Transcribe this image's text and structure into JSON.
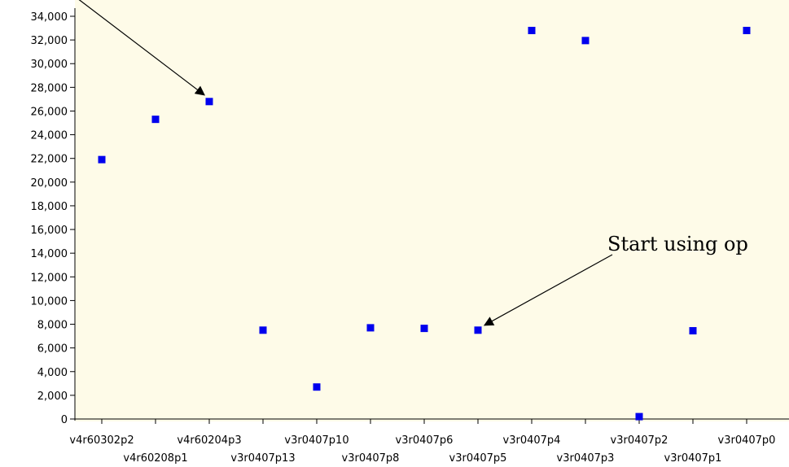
{
  "colors": {
    "plot_background": "#fefbe8",
    "marker": "#0000ee",
    "axis": "#000000",
    "annotation_arrow": "#000000"
  },
  "annotations": [
    {
      "text": "",
      "points_to": "v4r60204p3"
    },
    {
      "text": "Start using op",
      "points_to": "v3r0407p5"
    }
  ],
  "chart_data": {
    "type": "scatter",
    "title": "",
    "xlabel": "",
    "ylabel": "",
    "categories": [
      "v4r60302p2",
      "v4r60208p1",
      "v4r60204p3",
      "v3r0407p13",
      "v3r0407p10",
      "v3r0407p8",
      "v3r0407p6",
      "v3r0407p5",
      "v3r0407p4",
      "v3r0407p3",
      "v3r0407p2",
      "v3r0407p1",
      "v3r0407p0"
    ],
    "values": [
      21900,
      25300,
      26800,
      7500,
      2700,
      7700,
      7650,
      7500,
      32800,
      31950,
      200,
      7450,
      32800
    ],
    "ylim": [
      0,
      34000
    ],
    "ytick_step": 2000,
    "grid": false,
    "legend": "none"
  }
}
